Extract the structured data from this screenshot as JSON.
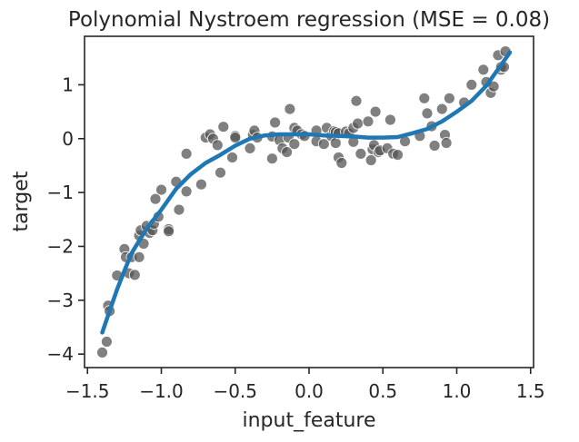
{
  "chart_data": {
    "type": "scatter",
    "title": "Polynomial Nystroem regression (MSE = 0.08)",
    "xlabel": "input_feature",
    "ylabel": "target",
    "xlim": [
      -1.52,
      1.52
    ],
    "ylim": [
      -4.25,
      1.9
    ],
    "xticks": [
      -1.5,
      -1.0,
      -0.5,
      0.0,
      0.5,
      1.0,
      1.5
    ],
    "xtick_labels": [
      "−1.5",
      "−1.0",
      "−0.5",
      "0.0",
      "0.5",
      "1.0",
      "1.5"
    ],
    "yticks": [
      -4,
      -3,
      -2,
      -1,
      0,
      1
    ],
    "ytick_labels": [
      "−4",
      "−3",
      "−2",
      "−1",
      "0",
      "1"
    ],
    "grid": false,
    "colors": {
      "points": "#555555",
      "line": "#1f77b4"
    },
    "series": [
      {
        "kind": "scatter",
        "points": [
          [
            -1.4,
            -3.97
          ],
          [
            -1.37,
            -3.77
          ],
          [
            -1.36,
            -3.1
          ],
          [
            -1.35,
            -3.2
          ],
          [
            -1.3,
            -2.54
          ],
          [
            -1.25,
            -2.05
          ],
          [
            -1.24,
            -2.2
          ],
          [
            -1.22,
            -2.5
          ],
          [
            -1.2,
            -2.2
          ],
          [
            -1.18,
            -2.53
          ],
          [
            -1.15,
            -2.2
          ],
          [
            -1.15,
            -1.8
          ],
          [
            -1.14,
            -1.7
          ],
          [
            -1.12,
            -1.95
          ],
          [
            -1.1,
            -1.62
          ],
          [
            -1.08,
            -1.75
          ],
          [
            -1.06,
            -1.7
          ],
          [
            -1.05,
            -1.58
          ],
          [
            -1.04,
            -1.12
          ],
          [
            -1.02,
            -1.45
          ],
          [
            -1.0,
            -0.95
          ],
          [
            -0.95,
            -1.68
          ],
          [
            -0.95,
            -1.72
          ],
          [
            -0.9,
            -0.8
          ],
          [
            -0.88,
            -1.32
          ],
          [
            -0.83,
            -0.98
          ],
          [
            -0.83,
            -0.28
          ],
          [
            -0.73,
            -0.85
          ],
          [
            -0.7,
            0.02
          ],
          [
            -0.67,
            0.08
          ],
          [
            -0.65,
            0.0
          ],
          [
            -0.62,
            -0.12
          ],
          [
            -0.6,
            -0.63
          ],
          [
            -0.58,
            0.22
          ],
          [
            -0.52,
            -0.35
          ],
          [
            -0.5,
            0.05
          ],
          [
            -0.5,
            0.02
          ],
          [
            -0.4,
            -0.18
          ],
          [
            -0.38,
            0.07
          ],
          [
            -0.37,
            0.15
          ],
          [
            -0.35,
            0.02
          ],
          [
            -0.25,
            0.04
          ],
          [
            -0.25,
            -0.37
          ],
          [
            -0.23,
            0.3
          ],
          [
            -0.2,
            -0.03
          ],
          [
            -0.18,
            -0.18
          ],
          [
            -0.15,
            -0.25
          ],
          [
            -0.14,
            0.02
          ],
          [
            -0.13,
            0.55
          ],
          [
            -0.1,
            -0.1
          ],
          [
            -0.1,
            0.2
          ],
          [
            -0.08,
            0.15
          ],
          [
            -0.05,
            0.08
          ],
          [
            -0.03,
            0.05
          ],
          [
            0.05,
            0.15
          ],
          [
            0.05,
            -0.05
          ],
          [
            0.1,
            -0.1
          ],
          [
            0.12,
            0.2
          ],
          [
            0.15,
            0.05
          ],
          [
            0.17,
            0.14
          ],
          [
            0.18,
            -0.08
          ],
          [
            0.18,
            0.12
          ],
          [
            0.2,
            -0.35
          ],
          [
            0.2,
            0.1
          ],
          [
            0.22,
            -0.45
          ],
          [
            0.25,
            0.13
          ],
          [
            0.27,
            0.1
          ],
          [
            0.3,
            -0.06
          ],
          [
            0.3,
            0.2
          ],
          [
            0.32,
            0.7
          ],
          [
            0.33,
            0.28
          ],
          [
            0.35,
            -0.28
          ],
          [
            0.4,
            0.32
          ],
          [
            0.42,
            -0.4
          ],
          [
            0.43,
            -0.2
          ],
          [
            0.44,
            -0.12
          ],
          [
            0.45,
            0.5
          ],
          [
            0.47,
            -0.25
          ],
          [
            0.48,
            -0.22
          ],
          [
            0.53,
            -0.18
          ],
          [
            0.55,
            0.35
          ],
          [
            0.57,
            -0.28
          ],
          [
            0.6,
            -0.3
          ],
          [
            0.65,
            -0.05
          ],
          [
            0.75,
            0.05
          ],
          [
            0.78,
            0.75
          ],
          [
            0.8,
            0.47
          ],
          [
            0.83,
            0.23
          ],
          [
            0.85,
            -0.13
          ],
          [
            0.9,
            0.55
          ],
          [
            0.92,
            0.07
          ],
          [
            0.95,
            0.75
          ],
          [
            0.93,
            -0.08
          ],
          [
            1.05,
            0.67
          ],
          [
            1.1,
            1.0
          ],
          [
            1.18,
            1.28
          ],
          [
            1.2,
            1.05
          ],
          [
            1.23,
            0.85
          ],
          [
            1.25,
            0.97
          ],
          [
            1.28,
            1.55
          ],
          [
            1.3,
            1.28
          ],
          [
            1.3,
            1.33
          ],
          [
            1.32,
            1.33
          ],
          [
            1.33,
            1.62
          ]
        ]
      },
      {
        "kind": "line",
        "points": [
          [
            -1.4,
            -3.6
          ],
          [
            -1.35,
            -3.2
          ],
          [
            -1.3,
            -2.8
          ],
          [
            -1.25,
            -2.45
          ],
          [
            -1.2,
            -2.12
          ],
          [
            -1.1,
            -1.67
          ],
          [
            -1.0,
            -1.32
          ],
          [
            -0.9,
            -0.93
          ],
          [
            -0.8,
            -0.66
          ],
          [
            -0.7,
            -0.45
          ],
          [
            -0.6,
            -0.3
          ],
          [
            -0.5,
            -0.13
          ],
          [
            -0.4,
            0.0
          ],
          [
            -0.3,
            0.06
          ],
          [
            -0.2,
            0.08
          ],
          [
            -0.1,
            0.08
          ],
          [
            0.0,
            0.08
          ],
          [
            0.1,
            0.06
          ],
          [
            0.2,
            0.05
          ],
          [
            0.3,
            0.04
          ],
          [
            0.4,
            0.02
          ],
          [
            0.5,
            0.02
          ],
          [
            0.6,
            0.03
          ],
          [
            0.7,
            0.1
          ],
          [
            0.8,
            0.18
          ],
          [
            0.9,
            0.32
          ],
          [
            1.0,
            0.5
          ],
          [
            1.1,
            0.7
          ],
          [
            1.2,
            0.98
          ],
          [
            1.3,
            1.37
          ],
          [
            1.36,
            1.6
          ]
        ]
      }
    ]
  }
}
